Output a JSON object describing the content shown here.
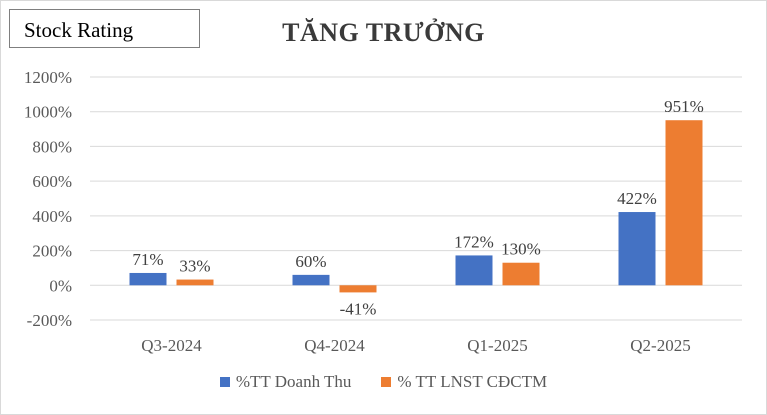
{
  "stock_box": {
    "label": "Stock Rating"
  },
  "chart_data": {
    "type": "bar",
    "title": "TĂNG TRƯỞNG",
    "categories": [
      "Q3-2024",
      "Q4-2024",
      "Q1-2025",
      "Q2-2025"
    ],
    "series": [
      {
        "name": "%TT Doanh Thu",
        "color": "#4472c4",
        "values": [
          71,
          60,
          172,
          422
        ],
        "labels": [
          "71%",
          "60%",
          "172%",
          "422%"
        ]
      },
      {
        "name": "% TT LNST CĐCTM",
        "color": "#ed7d31",
        "values": [
          33,
          -41,
          130,
          951
        ],
        "labels": [
          "33%",
          "-41%",
          "130%",
          "951%"
        ]
      }
    ],
    "ylim": [
      -200,
      1200
    ],
    "yticks": [
      -200,
      0,
      200,
      400,
      600,
      800,
      1000,
      1200
    ],
    "ytick_labels": [
      "-200%",
      "0%",
      "200%",
      "400%",
      "600%",
      "800%",
      "1000%",
      "1200%"
    ],
    "grid": true,
    "legend_position": "bottom"
  }
}
